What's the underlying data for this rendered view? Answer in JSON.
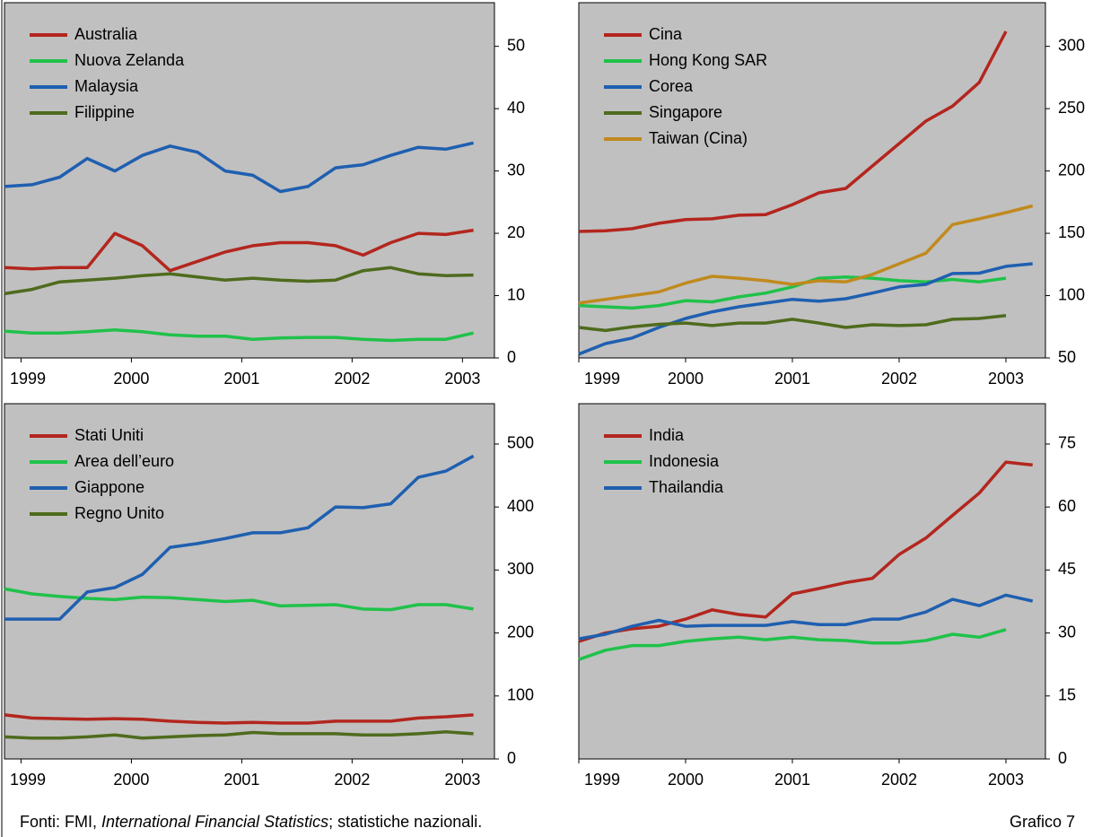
{
  "chart_data": [
    {
      "type": "line",
      "legend": "upper left",
      "x": [
        1998.85,
        1999.1,
        1999.35,
        1999.6,
        1999.85,
        2000.1,
        2000.35,
        2000.6,
        2000.85,
        2001.1,
        2001.35,
        2001.6,
        2001.85,
        2002.1,
        2002.35,
        2002.6,
        2002.85,
        2003.1
      ],
      "xlim": [
        1998.85,
        2003.29
      ],
      "xticks": [
        1999,
        2000,
        2001,
        2002,
        2003
      ],
      "ylim": [
        0,
        57
      ],
      "yticks": [
        0,
        10,
        20,
        30,
        40,
        50
      ],
      "series": [
        {
          "name": "Australia",
          "color": "#b3261e",
          "values": [
            14.5,
            14.3,
            14.5,
            14.5,
            20,
            18,
            14,
            15.5,
            17,
            18,
            18.5,
            18.5,
            18,
            16.5,
            18.5,
            20,
            19.8,
            20.5
          ]
        },
        {
          "name": "Nuova Zelanda",
          "color": "#1fc24a",
          "values": [
            4.3,
            4,
            4,
            4.2,
            4.5,
            4.2,
            3.7,
            3.5,
            3.5,
            3,
            3.2,
            3.3,
            3.3,
            3,
            2.8,
            3,
            3,
            4
          ]
        },
        {
          "name": "Malaysia",
          "color": "#1f5fb0",
          "values": [
            27.5,
            27.8,
            29,
            32,
            30,
            32.5,
            34,
            33,
            30,
            29.3,
            26.7,
            27.5,
            30.5,
            31,
            32.5,
            33.8,
            33.5,
            34.5
          ]
        },
        {
          "name": "Filippine",
          "color": "#4f6b1e",
          "values": [
            10.3,
            11,
            12.2,
            12.5,
            12.8,
            13.2,
            13.5,
            13,
            12.5,
            12.8,
            12.5,
            12.3,
            12.5,
            14,
            14.5,
            13.5,
            13.2,
            13.3
          ]
        }
      ]
    },
    {
      "type": "line",
      "legend": "upper left",
      "x": [
        1999,
        1999.25,
        1999.5,
        1999.75,
        2000,
        2000.25,
        2000.5,
        2000.75,
        2001,
        2001.25,
        2001.5,
        2001.75,
        2002,
        2002.25,
        2002.5,
        2002.75,
        2003,
        2003.25
      ],
      "xlim": [
        1999,
        2003.37
      ],
      "xticks": [
        1999,
        2000,
        2001,
        2002,
        2003
      ],
      "ylim": [
        50,
        335
      ],
      "yticks": [
        50,
        100,
        150,
        200,
        250,
        300
      ],
      "series": [
        {
          "name": "Cina",
          "color": "#b3261e",
          "values": [
            151.5,
            152,
            153.7,
            158,
            161,
            161.6,
            164.5,
            165,
            173,
            182.5,
            186,
            204,
            222,
            240,
            252,
            271,
            312,
            null
          ]
        },
        {
          "name": "Hong Kong SAR",
          "color": "#1fc24a",
          "values": [
            92,
            91,
            90,
            92,
            96,
            95,
            99,
            102,
            107,
            114,
            115,
            114,
            112,
            111,
            113,
            111,
            114,
            null
          ]
        },
        {
          "name": "Corea",
          "color": "#1f5fb0",
          "values": [
            53,
            61.5,
            66,
            74.5,
            81.7,
            87,
            91,
            94,
            97,
            95.5,
            97.5,
            102,
            107,
            109,
            117.7,
            118,
            123.5,
            125.6
          ]
        },
        {
          "name": "Singapore",
          "color": "#4f6b1e",
          "values": [
            74.5,
            72,
            75,
            77,
            78,
            76,
            78,
            78,
            81,
            78,
            74.5,
            76.6,
            76,
            76.6,
            81,
            81.7,
            84,
            null
          ]
        },
        {
          "name": "Taiwan (Cina)",
          "color": "#c08a1e",
          "values": [
            94,
            97,
            100,
            103,
            110,
            115.5,
            114,
            112,
            109,
            112,
            111,
            117,
            125.6,
            134,
            157,
            161.6,
            166.6,
            172
          ]
        }
      ]
    },
    {
      "type": "line",
      "legend": "upper left",
      "x": [
        1998.85,
        1999.1,
        1999.35,
        1999.6,
        1999.85,
        2000.1,
        2000.35,
        2000.6,
        2000.85,
        2001.1,
        2001.35,
        2001.6,
        2001.85,
        2002.1,
        2002.35,
        2002.6,
        2002.85,
        2003.1
      ],
      "xlim": [
        1998.85,
        2003.29
      ],
      "xticks": [
        1999,
        2000,
        2001,
        2002,
        2003
      ],
      "ylim": [
        0,
        564
      ],
      "yticks": [
        0,
        100,
        200,
        300,
        400,
        500
      ],
      "series": [
        {
          "name": "Stati Uniti",
          "color": "#b3261e",
          "values": [
            70,
            65,
            64,
            63,
            64,
            63,
            60,
            58,
            57,
            58,
            57,
            57,
            60,
            60,
            60,
            65,
            67,
            70
          ]
        },
        {
          "name": "Area dell’euro",
          "color": "#1fc24a",
          "values": [
            270,
            262,
            258,
            255,
            253,
            257,
            256,
            253,
            250,
            252,
            243,
            244,
            245,
            238,
            237,
            245,
            245,
            238
          ]
        },
        {
          "name": "Giappone",
          "color": "#1f5fb0",
          "values": [
            222,
            222,
            222,
            265,
            272,
            293,
            336,
            342,
            350,
            359,
            359,
            367,
            400,
            399,
            405,
            447,
            457,
            481
          ]
        },
        {
          "name": "Regno Unito",
          "color": "#4f6b1e",
          "values": [
            35,
            33,
            33,
            35,
            38,
            33,
            35,
            37,
            38,
            42,
            40,
            40,
            40,
            38,
            38,
            40,
            43,
            40
          ]
        }
      ]
    },
    {
      "type": "line",
      "legend": "upper left",
      "x": [
        1999,
        1999.25,
        1999.5,
        1999.75,
        2000,
        2000.25,
        2000.5,
        2000.75,
        2001,
        2001.25,
        2001.5,
        2001.75,
        2002,
        2002.25,
        2002.5,
        2002.75,
        2003,
        2003.25
      ],
      "xlim": [
        1999,
        2003.37
      ],
      "xticks": [
        1999,
        2000,
        2001,
        2002,
        2003
      ],
      "ylim": [
        0,
        84.6
      ],
      "yticks": [
        0,
        15,
        30,
        45,
        60,
        75
      ],
      "series": [
        {
          "name": "India",
          "color": "#b3261e",
          "values": [
            28,
            30,
            31,
            31.6,
            33.3,
            35.5,
            34.4,
            33.8,
            39.3,
            40.6,
            42,
            43,
            48.7,
            52.6,
            58,
            63.3,
            70.7,
            70
          ]
        },
        {
          "name": "Indonesia",
          "color": "#1fc24a",
          "values": [
            23.7,
            25.9,
            27,
            27,
            28,
            28.6,
            29,
            28.4,
            29,
            28.4,
            28.2,
            27.6,
            27.6,
            28.2,
            29.7,
            29,
            30.8,
            null
          ]
        },
        {
          "name": "Thailandia",
          "color": "#1f5fb0",
          "values": [
            28.6,
            29.7,
            31.6,
            33,
            31.6,
            31.8,
            31.8,
            31.8,
            32.7,
            32,
            32,
            33.3,
            33.3,
            35,
            38,
            36.5,
            39,
            37.6
          ]
        }
      ]
    }
  ],
  "footer": {
    "source": [
      "Fonti: FMI, ",
      "International Financial Statistics",
      "; statistiche nazionali."
    ],
    "label": "Grafico 7"
  }
}
